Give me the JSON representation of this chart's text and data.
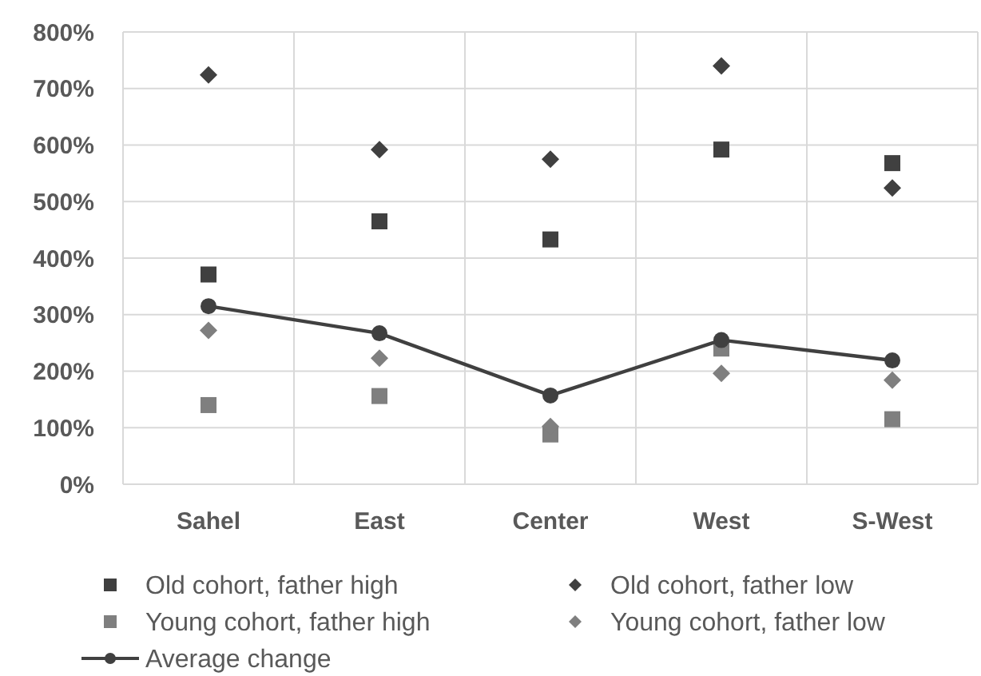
{
  "chart_data": {
    "type": "scatter",
    "categories": [
      "Sahel",
      "East",
      "Center",
      "West",
      "S-West"
    ],
    "series": [
      {
        "name": "Old cohort, father high",
        "color": "#404040",
        "marker": "square",
        "values": [
          371,
          465,
          433,
          592,
          568
        ]
      },
      {
        "name": "Old cohort, father low",
        "color": "#404040",
        "marker": "diamond",
        "values": [
          724,
          592,
          575,
          740,
          524
        ]
      },
      {
        "name": "Young cohort, father high",
        "color": "#7f7f7f",
        "marker": "square",
        "values": [
          140,
          156,
          88,
          240,
          115
        ]
      },
      {
        "name": "Young cohort, father low",
        "color": "#7f7f7f",
        "marker": "diamond",
        "values": [
          272,
          223,
          102,
          196,
          184
        ]
      },
      {
        "name": "Average change",
        "type": "line",
        "color": "#404040",
        "marker": "circle",
        "line_style": "solid",
        "values": [
          315,
          267,
          157,
          255,
          219
        ]
      }
    ],
    "ylim": [
      0,
      800
    ],
    "yticks": [
      {
        "value": 0,
        "label": "0%"
      },
      {
        "value": 100,
        "label": "100%"
      },
      {
        "value": 200,
        "label": "200%"
      },
      {
        "value": 300,
        "label": "300%"
      },
      {
        "value": 400,
        "label": "400%"
      },
      {
        "value": 500,
        "label": "500%"
      },
      {
        "value": 600,
        "label": "600%"
      },
      {
        "value": 700,
        "label": "700%"
      },
      {
        "value": 800,
        "label": "800%"
      }
    ],
    "grid": true,
    "legend": "bottom"
  }
}
